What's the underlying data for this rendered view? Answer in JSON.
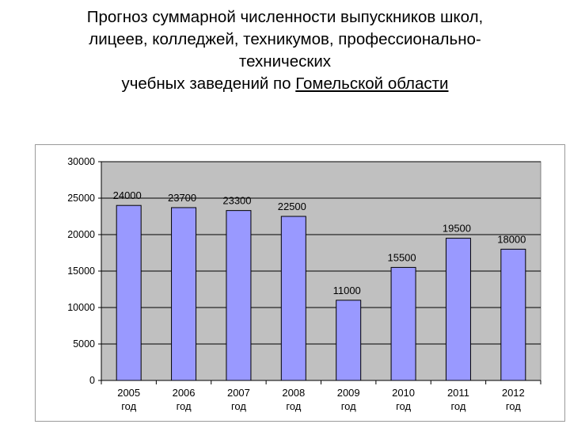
{
  "title": {
    "line1": "Прогноз суммарной численности выпускников школ,",
    "line2": "лицеев, колледжей, техникумов, профессионально-",
    "line3": "технических",
    "line4_prefix": "учебных заведений по ",
    "line4_underlined": "Гомельской области"
  },
  "chart_data": {
    "type": "bar",
    "categories": [
      [
        "2005",
        "год"
      ],
      [
        "2006",
        "год"
      ],
      [
        "2007",
        "год"
      ],
      [
        "2008",
        "год"
      ],
      [
        "2009",
        "год"
      ],
      [
        "2010",
        "год"
      ],
      [
        "2011",
        "год"
      ],
      [
        "2012",
        "год"
      ]
    ],
    "values": [
      24000,
      23700,
      23300,
      22500,
      11000,
      15500,
      19500,
      18000
    ],
    "ylim": [
      0,
      30000
    ],
    "yticks": [
      0,
      5000,
      10000,
      15000,
      20000,
      25000,
      30000
    ],
    "grid": true,
    "legend": "none",
    "colors": {
      "bar_fill": "#9999ff",
      "bar_stroke": "#000000",
      "plot_background": "#c0c0c0",
      "grid_line": "#000000"
    }
  }
}
